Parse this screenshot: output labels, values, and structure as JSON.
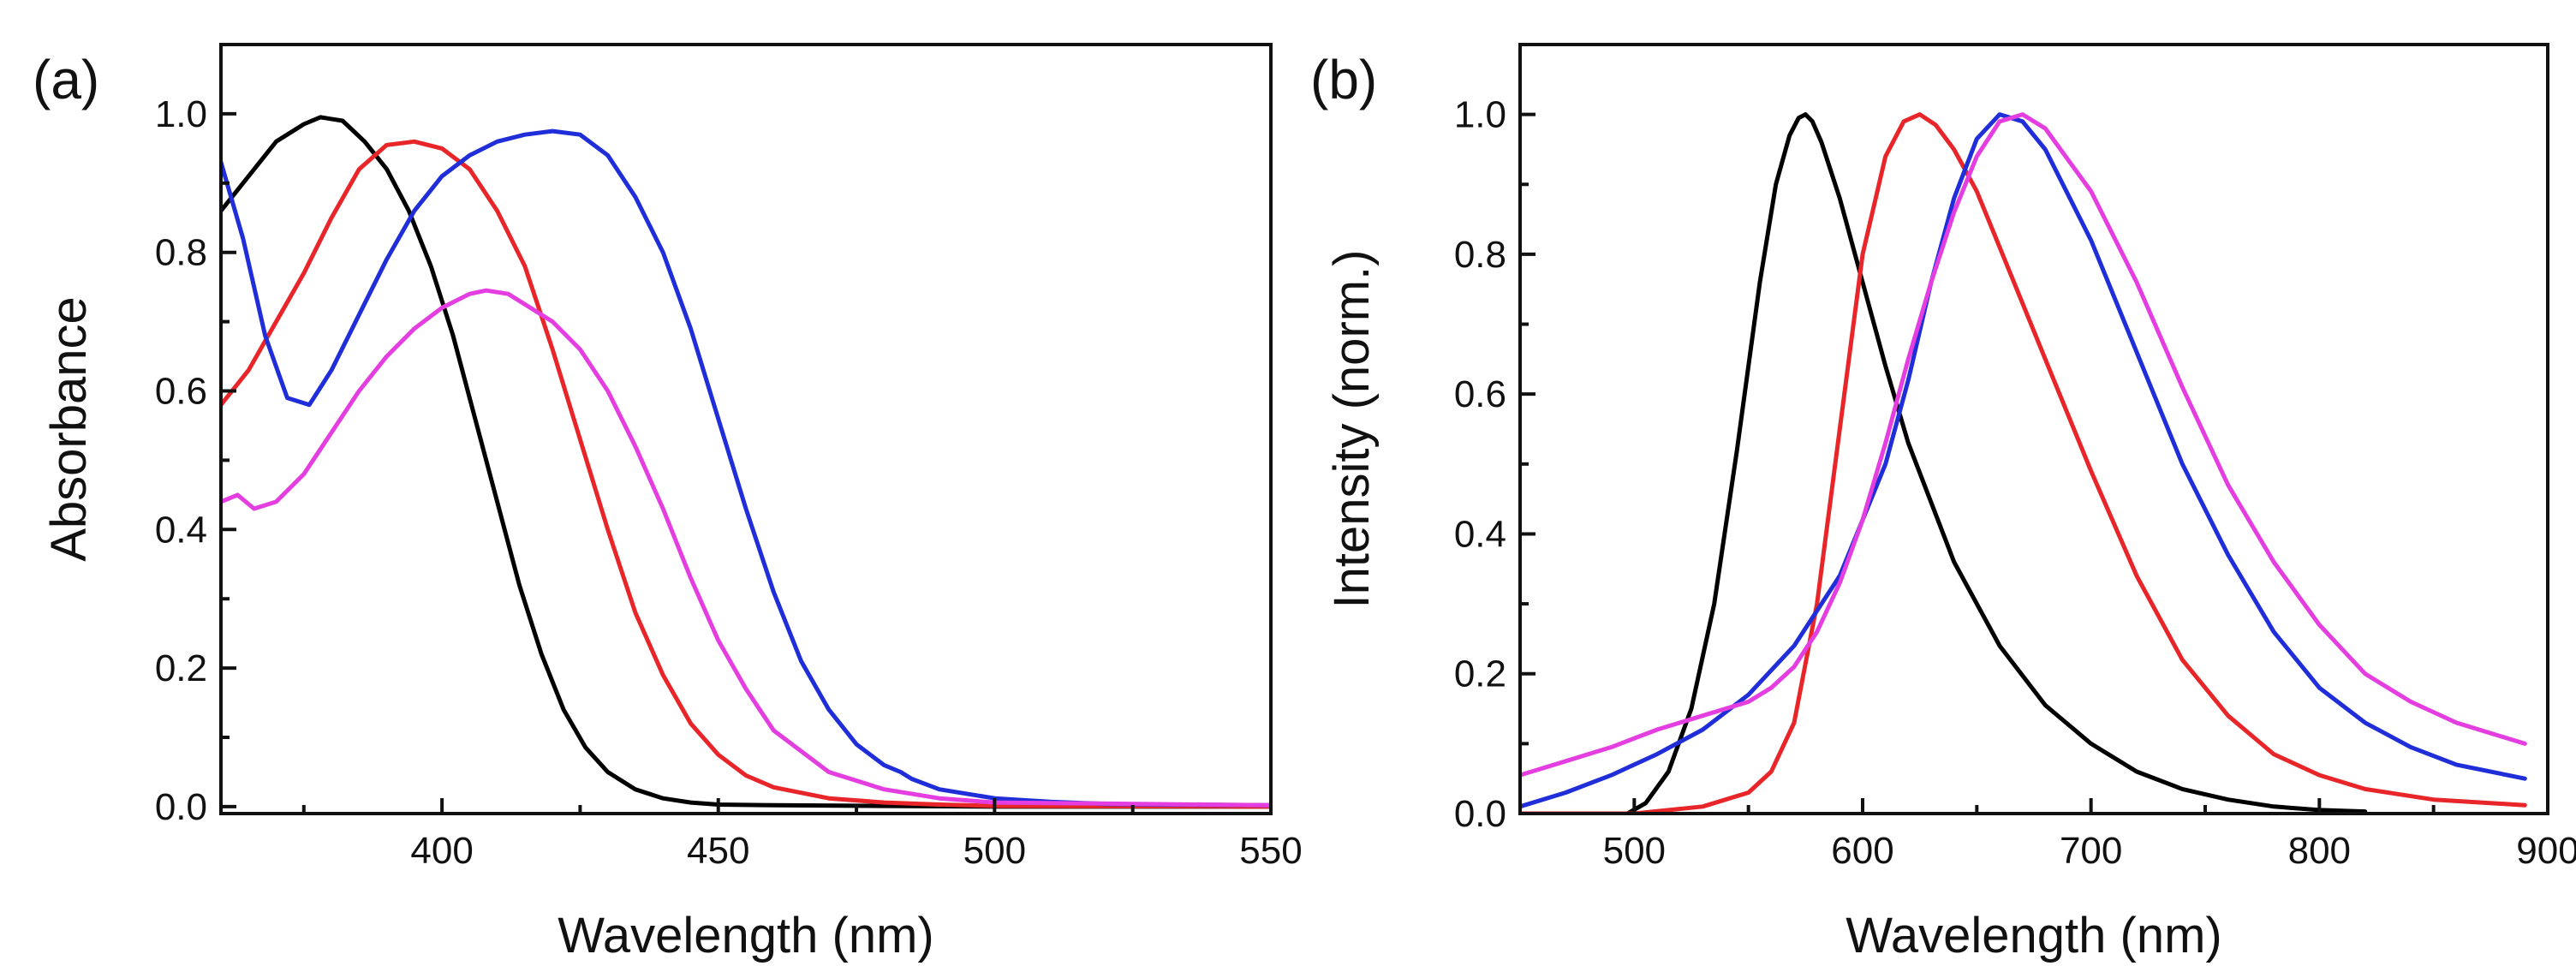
{
  "chart_data": [
    {
      "type": "line",
      "panel_label": "(a)",
      "xlabel": "Wavelength (nm)",
      "ylabel": "Absorbance",
      "xlim": [
        360,
        550
      ],
      "ylim": [
        -0.01,
        1.1
      ],
      "xticks": [
        400,
        450,
        500,
        550
      ],
      "yticks": [
        0.0,
        0.2,
        0.4,
        0.6,
        0.8,
        1.0
      ],
      "xtick_labels": [
        "400",
        "450",
        "500",
        "550"
      ],
      "ytick_labels": [
        "0.0",
        "0.2",
        "0.4",
        "0.6",
        "0.8",
        "1.0"
      ],
      "grid": false,
      "series": [
        {
          "name": "black",
          "color": "#000000",
          "x": [
            360,
            365,
            370,
            375,
            378,
            382,
            386,
            390,
            394,
            398,
            402,
            406,
            410,
            414,
            418,
            422,
            426,
            430,
            435,
            440,
            445,
            450,
            460,
            480,
            500,
            550
          ],
          "y": [
            0.86,
            0.91,
            0.96,
            0.985,
            0.995,
            0.99,
            0.96,
            0.92,
            0.86,
            0.78,
            0.68,
            0.56,
            0.44,
            0.32,
            0.22,
            0.14,
            0.085,
            0.05,
            0.025,
            0.012,
            0.006,
            0.003,
            0.002,
            0.001,
            0.0,
            0.0
          ]
        },
        {
          "name": "red",
          "color": "#e8262a",
          "x": [
            360,
            365,
            370,
            375,
            380,
            385,
            390,
            395,
            400,
            405,
            410,
            415,
            420,
            425,
            430,
            435,
            440,
            445,
            450,
            455,
            460,
            470,
            480,
            490,
            500,
            550
          ],
          "y": [
            0.58,
            0.63,
            0.7,
            0.77,
            0.85,
            0.92,
            0.955,
            0.96,
            0.95,
            0.92,
            0.86,
            0.78,
            0.66,
            0.53,
            0.4,
            0.28,
            0.19,
            0.12,
            0.075,
            0.045,
            0.028,
            0.012,
            0.006,
            0.003,
            0.001,
            0.0
          ]
        },
        {
          "name": "blue",
          "color": "#1f2ed8",
          "x": [
            360,
            364,
            368,
            372,
            376,
            380,
            385,
            390,
            395,
            400,
            405,
            410,
            415,
            420,
            425,
            430,
            435,
            440,
            445,
            450,
            455,
            460,
            465,
            470,
            475,
            480,
            483,
            485,
            490,
            500,
            510,
            520,
            530,
            550
          ],
          "y": [
            0.93,
            0.82,
            0.68,
            0.59,
            0.58,
            0.63,
            0.71,
            0.79,
            0.86,
            0.91,
            0.94,
            0.96,
            0.97,
            0.975,
            0.97,
            0.94,
            0.88,
            0.8,
            0.69,
            0.56,
            0.43,
            0.31,
            0.21,
            0.14,
            0.09,
            0.06,
            0.05,
            0.04,
            0.025,
            0.012,
            0.007,
            0.004,
            0.003,
            0.002
          ]
        },
        {
          "name": "magenta",
          "color": "#e43ee0",
          "x": [
            360,
            363,
            366,
            370,
            375,
            380,
            385,
            390,
            395,
            400,
            405,
            408,
            412,
            416,
            420,
            425,
            430,
            435,
            440,
            445,
            450,
            455,
            460,
            470,
            480,
            490,
            500,
            550
          ],
          "y": [
            0.44,
            0.45,
            0.43,
            0.44,
            0.48,
            0.54,
            0.6,
            0.65,
            0.69,
            0.72,
            0.74,
            0.745,
            0.74,
            0.72,
            0.7,
            0.66,
            0.6,
            0.52,
            0.43,
            0.33,
            0.24,
            0.17,
            0.11,
            0.05,
            0.025,
            0.012,
            0.006,
            0.002
          ]
        }
      ]
    },
    {
      "type": "line",
      "panel_label": "(b)",
      "xlabel": "Wavelength (nm)",
      "ylabel": "Intensity (norm.)",
      "xlim": [
        450,
        900
      ],
      "ylim": [
        0.0,
        1.1
      ],
      "xticks": [
        500,
        600,
        700,
        800,
        900
      ],
      "yticks": [
        0.0,
        0.2,
        0.4,
        0.6,
        0.8,
        1.0
      ],
      "xtick_labels": [
        "500",
        "600",
        "700",
        "800",
        "900"
      ],
      "ytick_labels": [
        "0.0",
        "0.2",
        "0.4",
        "0.6",
        "0.8",
        "1.0"
      ],
      "grid": false,
      "series": [
        {
          "name": "black",
          "color": "#000000",
          "x": [
            497,
            505,
            515,
            525,
            535,
            545,
            555,
            562,
            568,
            572,
            575,
            578,
            582,
            590,
            600,
            610,
            620,
            640,
            660,
            680,
            700,
            720,
            740,
            760,
            780,
            800,
            820
          ],
          "y": [
            0.0,
            0.015,
            0.06,
            0.15,
            0.3,
            0.52,
            0.76,
            0.9,
            0.97,
            0.995,
            1.0,
            0.99,
            0.96,
            0.88,
            0.76,
            0.64,
            0.53,
            0.36,
            0.24,
            0.155,
            0.1,
            0.06,
            0.035,
            0.02,
            0.01,
            0.005,
            0.003
          ]
        },
        {
          "name": "red",
          "color": "#e8262a",
          "x": [
            450,
            500,
            530,
            550,
            560,
            570,
            580,
            590,
            600,
            610,
            618,
            625,
            632,
            640,
            650,
            660,
            680,
            700,
            720,
            740,
            760,
            780,
            800,
            820,
            850,
            890
          ],
          "y": [
            0.0,
            0.0,
            0.01,
            0.03,
            0.06,
            0.13,
            0.3,
            0.55,
            0.8,
            0.94,
            0.99,
            1.0,
            0.985,
            0.95,
            0.89,
            0.81,
            0.65,
            0.49,
            0.34,
            0.22,
            0.14,
            0.085,
            0.055,
            0.035,
            0.02,
            0.012
          ]
        },
        {
          "name": "blue",
          "color": "#1f2ed8",
          "x": [
            450,
            470,
            490,
            510,
            530,
            550,
            570,
            590,
            610,
            620,
            630,
            640,
            650,
            660,
            670,
            680,
            700,
            720,
            740,
            760,
            780,
            800,
            820,
            840,
            860,
            890
          ],
          "y": [
            0.01,
            0.03,
            0.055,
            0.085,
            0.12,
            0.17,
            0.24,
            0.34,
            0.5,
            0.62,
            0.76,
            0.88,
            0.965,
            1.0,
            0.99,
            0.95,
            0.82,
            0.66,
            0.5,
            0.37,
            0.26,
            0.18,
            0.13,
            0.095,
            0.07,
            0.05
          ]
        },
        {
          "name": "magenta",
          "color": "#e43ee0",
          "x": [
            450,
            470,
            490,
            510,
            530,
            550,
            560,
            570,
            580,
            590,
            600,
            610,
            620,
            630,
            640,
            650,
            660,
            670,
            680,
            700,
            720,
            740,
            760,
            780,
            800,
            820,
            840,
            860,
            890
          ],
          "y": [
            0.055,
            0.075,
            0.095,
            0.12,
            0.14,
            0.16,
            0.18,
            0.21,
            0.26,
            0.33,
            0.42,
            0.53,
            0.65,
            0.76,
            0.86,
            0.94,
            0.99,
            1.0,
            0.98,
            0.89,
            0.76,
            0.61,
            0.47,
            0.36,
            0.27,
            0.2,
            0.16,
            0.13,
            0.1
          ]
        }
      ]
    }
  ]
}
